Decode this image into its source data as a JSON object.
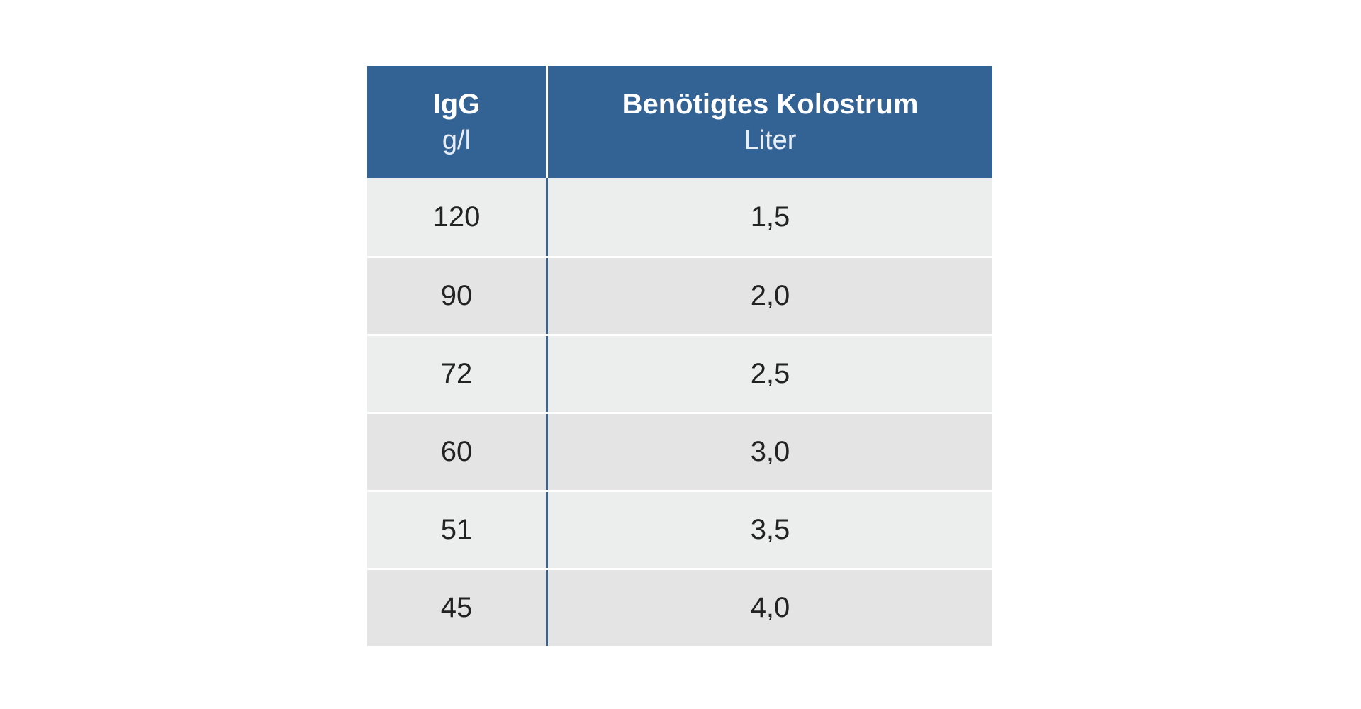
{
  "table": {
    "header": [
      {
        "title": "IgG",
        "unit": "g/l"
      },
      {
        "title": "Benötigtes Kolostrum",
        "unit": "Liter"
      }
    ],
    "rows": [
      [
        "120",
        "1,5"
      ],
      [
        "90",
        "2,0"
      ],
      [
        "72",
        "2,5"
      ],
      [
        "60",
        "3,0"
      ],
      [
        "51",
        "3,5"
      ],
      [
        "45",
        "4,0"
      ]
    ]
  }
}
